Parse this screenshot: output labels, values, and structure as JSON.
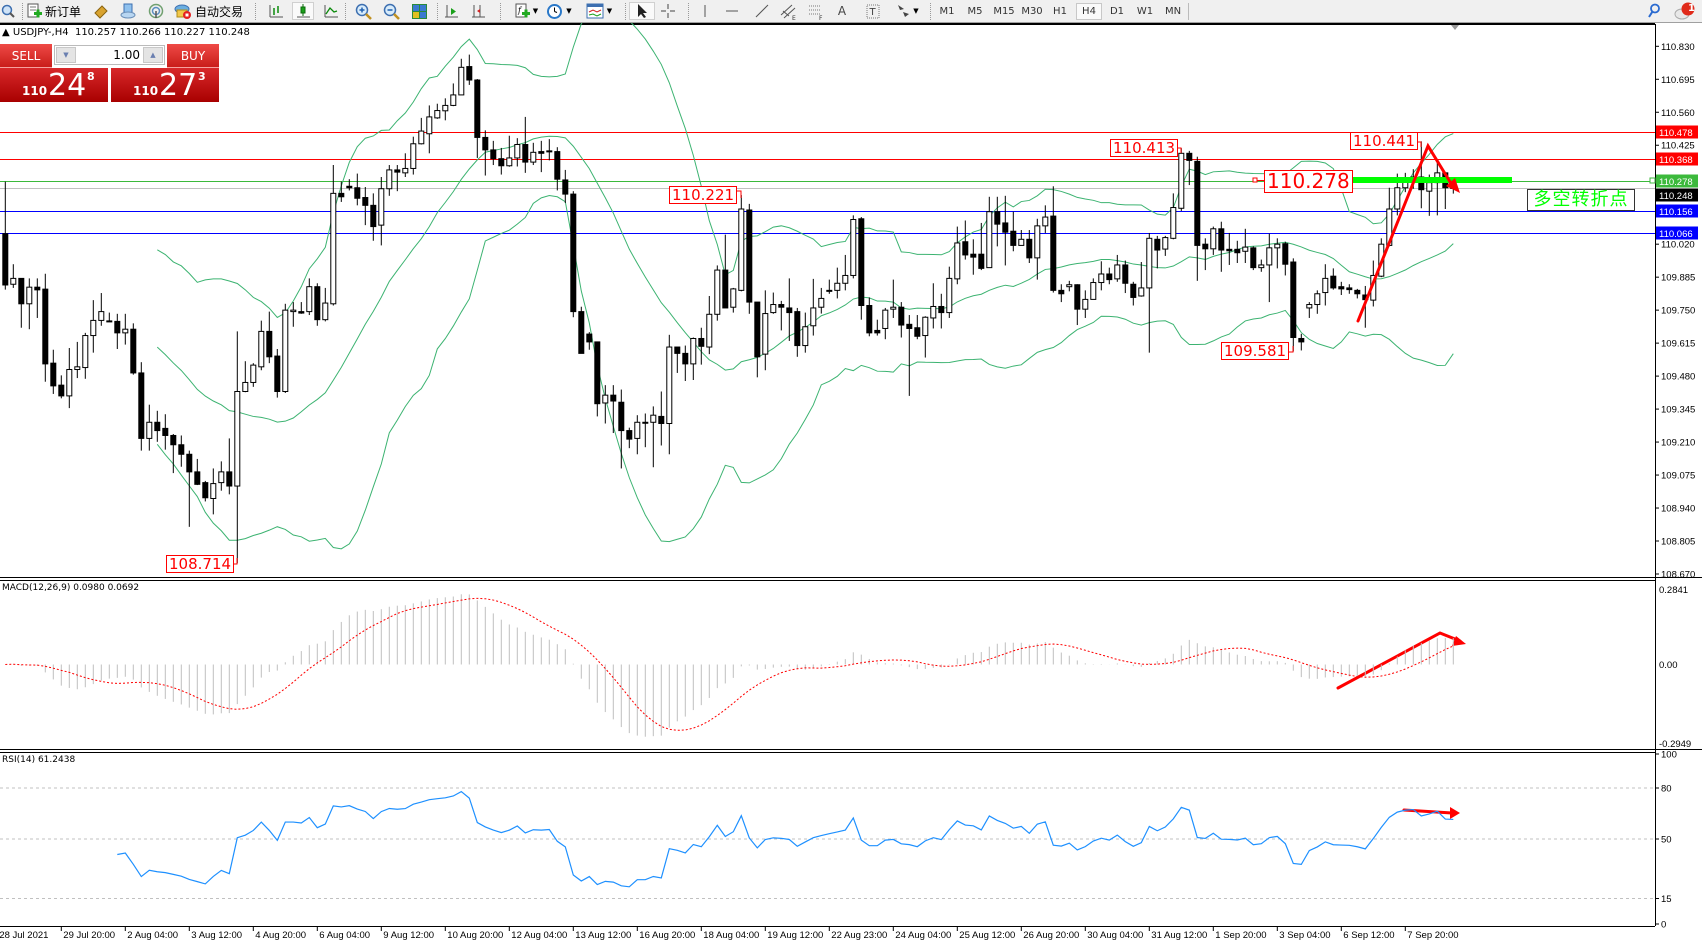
{
  "toolbar": {
    "new_order_label": "新订单",
    "auto_trading_label": "自动交易",
    "timeframes": [
      "M1",
      "M5",
      "M15",
      "M30",
      "H1",
      "H4",
      "D1",
      "W1",
      "MN"
    ],
    "active_timeframe": "H4",
    "notification_count": "1",
    "colors": {
      "background": "#f0f0f0"
    }
  },
  "chart": {
    "symbol": "USDJPY-,H4",
    "ohlc_readout": "110.257 110.266 110.227 110.248",
    "one_click": {
      "sell_label": "SELL",
      "buy_label": "BUY",
      "lot": "1.00",
      "sell_price": {
        "big": "110",
        "main": "24",
        "pip": "8"
      },
      "buy_price": {
        "big": "110",
        "main": "27",
        "pip": "3"
      }
    },
    "price_axis": [
      "110.830",
      "110.695",
      "110.560",
      "110.425",
      "110.020",
      "109.885",
      "109.750",
      "109.615",
      "109.480",
      "109.345",
      "109.210",
      "109.075",
      "108.940",
      "108.805",
      "108.670"
    ],
    "levels": [
      {
        "price": "110.478",
        "color": "#ff0000"
      },
      {
        "price": "110.368",
        "color": "#ff0000"
      },
      {
        "price": "110.278",
        "color": "#3cb93c"
      },
      {
        "price": "110.248",
        "color": "#000000"
      },
      {
        "price": "110.156",
        "color": "#0000ff"
      },
      {
        "price": "110.066",
        "color": "#0000ff"
      }
    ],
    "price_labels": {
      "low_1": "108.714",
      "high_1": "110.221",
      "high_2": "110.413",
      "pivot": "110.278",
      "high_3": "110.441",
      "low_2": "109.581"
    },
    "annotation_text": "多空转折点",
    "colors": {
      "bands": "#3cb371",
      "arrow": "#ff0000",
      "pivot_bar": "#00ff00"
    }
  },
  "macd": {
    "title": "MACD(12,26,9) 0.0980 0.0692",
    "axis": [
      "0.2841",
      "0.00",
      "-0.2949"
    ],
    "colors": {
      "histogram": "#c0c0c0",
      "signal": "#ff0000"
    }
  },
  "rsi": {
    "title": "RSI(14) 61.2438",
    "axis": [
      "100",
      "80",
      "50",
      "15",
      "0"
    ],
    "levels": [
      80,
      50,
      15
    ],
    "colors": {
      "line": "#1e90ff"
    }
  },
  "time_axis": [
    "28 Jul 2021",
    "29 Jul 20:00",
    "2 Aug 04:00",
    "3 Aug 12:00",
    "4 Aug 20:00",
    "6 Aug 04:00",
    "9 Aug 12:00",
    "10 Aug 20:00",
    "12 Aug 04:00",
    "13 Aug 12:00",
    "16 Aug 20:00",
    "18 Aug 04:00",
    "19 Aug 12:00",
    "22 Aug 23:00",
    "24 Aug 04:00",
    "25 Aug 12:00",
    "26 Aug 20:00",
    "30 Aug 04:00",
    "31 Aug 12:00",
    "1 Sep 20:00",
    "3 Sep 04:00",
    "6 Sep 12:00",
    "7 Sep 20:00"
  ],
  "chart_data": {
    "type": "candlestick",
    "timeframe": "H4",
    "ylim": [
      108.67,
      110.83
    ],
    "indicators": [
      "Bollinger Bands",
      "MACD(12,26,9)",
      "RSI(14)"
    ],
    "ohlc": [
      [
        110.063,
        110.276,
        109.834,
        109.853
      ],
      [
        109.856,
        109.938,
        109.841,
        109.88
      ],
      [
        109.88,
        109.88,
        109.678,
        109.776
      ],
      [
        109.776,
        109.88,
        109.672,
        109.844
      ],
      [
        109.844,
        109.88,
        109.718,
        109.833
      ],
      [
        109.836,
        109.899,
        109.457,
        109.53
      ],
      [
        109.533,
        109.588,
        109.407,
        109.44
      ],
      [
        109.443,
        109.483,
        109.389,
        109.399
      ],
      [
        109.399,
        109.595,
        109.349,
        109.507
      ],
      [
        109.507,
        109.62,
        109.472,
        109.518
      ],
      [
        109.515,
        109.657,
        109.469,
        109.646
      ],
      [
        109.646,
        109.791,
        109.576,
        109.708
      ],
      [
        109.708,
        109.82,
        109.686,
        109.744
      ],
      [
        109.706,
        109.74,
        109.701,
        109.702
      ],
      [
        109.704,
        109.735,
        109.591,
        109.657
      ],
      [
        109.657,
        109.735,
        109.609,
        109.672
      ],
      [
        109.672,
        109.696,
        109.486,
        109.493
      ],
      [
        109.493,
        109.537,
        109.175,
        109.225
      ],
      [
        109.225,
        109.363,
        109.175,
        109.291
      ],
      [
        109.291,
        109.338,
        109.211,
        109.257
      ],
      [
        109.266,
        109.324,
        109.179,
        109.237
      ],
      [
        109.237,
        109.243,
        109.083,
        109.199
      ],
      [
        109.199,
        109.237,
        109.109,
        109.16
      ],
      [
        109.16,
        109.175,
        108.863,
        109.088
      ],
      [
        109.088,
        109.141,
        109.034,
        109.037
      ],
      [
        109.044,
        109.051,
        108.967,
        108.982
      ],
      [
        108.979,
        109.102,
        108.914,
        109.04
      ],
      [
        109.044,
        109.131,
        109.011,
        109.088
      ],
      [
        109.088,
        109.225,
        108.996,
        109.03
      ],
      [
        109.03,
        109.663,
        108.714,
        109.417
      ],
      [
        109.417,
        109.541,
        109.414,
        109.454
      ],
      [
        109.454,
        109.533,
        109.436,
        109.525
      ],
      [
        109.518,
        109.707,
        109.504,
        109.663
      ],
      [
        109.663,
        109.744,
        109.533,
        109.559
      ],
      [
        109.562,
        109.591,
        109.392,
        109.417
      ],
      [
        109.417,
        109.776,
        109.411,
        109.75
      ],
      [
        109.744,
        109.783,
        109.682,
        109.75
      ],
      [
        109.744,
        109.783,
        109.735,
        109.738
      ],
      [
        109.744,
        109.88,
        109.73,
        109.846
      ],
      [
        109.846,
        109.86,
        109.686,
        109.711
      ],
      [
        109.711,
        109.841,
        109.704,
        109.779
      ],
      [
        109.776,
        110.344,
        109.769,
        110.228
      ],
      [
        110.228,
        110.276,
        110.193,
        110.214
      ],
      [
        110.257,
        110.286,
        110.24,
        110.251
      ],
      [
        110.251,
        110.309,
        110.179,
        110.208
      ],
      [
        110.211,
        110.254,
        110.098,
        110.179
      ],
      [
        110.179,
        110.228,
        110.034,
        110.092
      ],
      [
        110.098,
        110.295,
        110.015,
        110.247
      ],
      [
        110.247,
        110.344,
        110.218,
        110.324
      ],
      [
        110.324,
        110.344,
        110.237,
        110.315
      ],
      [
        110.312,
        110.392,
        110.295,
        110.33
      ],
      [
        110.33,
        110.46,
        110.305,
        110.431
      ],
      [
        110.431,
        110.537,
        110.428,
        110.483
      ],
      [
        110.472,
        110.588,
        110.392,
        110.541
      ],
      [
        110.537,
        110.595,
        110.533,
        110.567
      ],
      [
        110.566,
        110.617,
        110.527,
        110.588
      ],
      [
        110.588,
        110.678,
        110.585,
        110.631
      ],
      [
        110.631,
        110.779,
        110.631,
        110.744
      ],
      [
        110.747,
        110.796,
        110.672,
        110.692
      ],
      [
        110.692,
        110.696,
        110.373,
        110.457
      ],
      [
        110.457,
        110.486,
        110.301,
        110.406
      ],
      [
        110.406,
        110.443,
        110.344,
        110.37
      ],
      [
        110.37,
        110.414,
        110.305,
        110.341
      ],
      [
        110.341,
        110.464,
        110.337,
        110.373
      ],
      [
        110.373,
        110.454,
        110.338,
        110.428
      ],
      [
        110.428,
        110.541,
        110.312,
        110.356
      ],
      [
        110.356,
        110.435,
        110.344,
        110.396
      ],
      [
        110.399,
        110.443,
        110.315,
        110.392
      ],
      [
        110.402,
        110.45,
        110.363,
        110.399
      ],
      [
        110.399,
        110.417,
        110.24,
        110.286
      ],
      [
        110.283,
        110.324,
        110.189,
        110.225
      ],
      [
        110.225,
        110.237,
        109.721,
        109.744
      ],
      [
        109.744,
        109.764,
        109.573,
        109.573
      ],
      [
        109.652,
        109.66,
        109.588,
        109.62
      ],
      [
        109.62,
        109.62,
        109.315,
        109.367
      ],
      [
        109.37,
        109.443,
        109.286,
        109.402
      ],
      [
        109.402,
        109.443,
        109.247,
        109.378
      ],
      [
        109.373,
        109.425,
        109.102,
        109.257
      ],
      [
        109.257,
        109.269,
        109.185,
        109.222
      ],
      [
        109.225,
        109.32,
        109.16,
        109.291
      ],
      [
        109.291,
        109.327,
        109.189,
        109.291
      ],
      [
        109.291,
        109.356,
        109.107,
        109.32
      ],
      [
        109.315,
        109.417,
        109.196,
        109.286
      ],
      [
        109.286,
        109.649,
        109.16,
        109.599
      ],
      [
        109.599,
        109.599,
        109.493,
        109.573
      ],
      [
        109.573,
        109.605,
        109.46,
        109.53
      ],
      [
        109.53,
        109.638,
        109.464,
        109.634
      ],
      [
        109.634,
        109.678,
        109.527,
        109.602
      ],
      [
        109.599,
        109.808,
        109.57,
        109.733
      ],
      [
        109.733,
        109.933,
        109.707,
        109.914
      ],
      [
        109.914,
        110.059,
        109.759,
        109.759
      ],
      [
        109.762,
        109.841,
        109.74,
        109.837
      ],
      [
        109.831,
        110.221,
        109.827,
        110.164
      ],
      [
        110.16,
        110.185,
        109.735,
        109.783
      ],
      [
        109.783,
        109.783,
        109.475,
        109.559
      ],
      [
        109.57,
        109.831,
        109.504,
        109.736
      ],
      [
        109.74,
        109.822,
        109.735,
        109.773
      ],
      [
        109.773,
        109.788,
        109.667,
        109.762
      ],
      [
        109.759,
        109.88,
        109.624,
        109.74
      ],
      [
        109.744,
        109.759,
        109.559,
        109.605
      ],
      [
        109.605,
        109.74,
        109.576,
        109.682
      ],
      [
        109.686,
        109.878,
        109.646,
        109.759
      ],
      [
        109.762,
        109.841,
        109.736,
        109.798
      ],
      [
        109.831,
        109.875,
        109.817,
        109.831
      ],
      [
        109.831,
        109.924,
        109.798,
        109.86
      ],
      [
        109.86,
        109.976,
        109.831,
        109.892
      ],
      [
        109.892,
        110.138,
        109.88,
        110.121
      ],
      [
        110.124,
        110.131,
        109.711,
        109.769
      ],
      [
        109.769,
        109.802,
        109.643,
        109.657
      ],
      [
        109.667,
        109.711,
        109.646,
        109.657
      ],
      [
        109.675,
        109.759,
        109.631,
        109.75
      ],
      [
        109.754,
        109.875,
        109.718,
        109.762
      ],
      [
        109.762,
        109.783,
        109.638,
        109.689
      ],
      [
        109.692,
        109.73,
        109.399,
        109.675
      ],
      [
        109.678,
        109.73,
        109.631,
        109.643
      ],
      [
        109.646,
        109.725,
        109.556,
        109.721
      ],
      [
        109.718,
        109.86,
        109.675,
        109.765
      ],
      [
        109.765,
        109.817,
        109.675,
        109.74
      ],
      [
        109.74,
        109.928,
        109.718,
        109.88
      ],
      [
        109.878,
        110.092,
        109.856,
        110.025
      ],
      [
        110.03,
        110.117,
        109.957,
        109.976
      ],
      [
        109.979,
        110.04,
        109.895,
        109.967
      ],
      [
        109.979,
        110.107,
        109.914,
        109.921
      ],
      [
        109.924,
        110.214,
        109.924,
        110.153
      ],
      [
        110.153,
        110.214,
        110.011,
        110.102
      ],
      [
        110.107,
        110.218,
        109.933,
        110.069
      ],
      [
        110.073,
        110.153,
        109.991,
        110.015
      ],
      [
        110.015,
        110.078,
        110.015,
        110.04
      ],
      [
        110.04,
        110.078,
        109.943,
        109.964
      ],
      [
        109.964,
        110.124,
        109.875,
        110.095
      ],
      [
        110.095,
        110.179,
        110.066,
        110.131
      ],
      [
        110.135,
        110.257,
        109.822,
        109.831
      ],
      [
        109.831,
        109.856,
        109.783,
        109.817
      ],
      [
        109.846,
        109.87,
        109.827,
        109.854
      ],
      [
        109.854,
        109.856,
        109.689,
        109.754
      ],
      [
        109.754,
        109.831,
        109.718,
        109.794
      ],
      [
        109.794,
        109.88,
        109.794,
        109.863
      ],
      [
        109.863,
        109.95,
        109.831,
        109.898
      ],
      [
        109.898,
        109.924,
        109.856,
        109.875
      ],
      [
        109.878,
        109.976,
        109.866,
        109.935
      ],
      [
        109.935,
        109.953,
        109.82,
        109.86
      ],
      [
        109.856,
        109.866,
        109.769,
        109.802
      ],
      [
        109.808,
        109.947,
        109.805,
        109.841
      ],
      [
        109.841,
        110.066,
        109.576,
        110.044
      ],
      [
        110.04,
        110.054,
        109.921,
        109.996
      ],
      [
        110.0,
        110.054,
        109.972,
        110.047
      ],
      [
        110.044,
        110.228,
        110.04,
        110.17
      ],
      [
        110.167,
        110.413,
        110.156,
        110.392
      ],
      [
        110.392,
        110.402,
        110.262,
        110.363
      ],
      [
        110.359,
        110.378,
        109.87,
        110.015
      ],
      [
        110.02,
        110.044,
        109.914,
        110.001
      ],
      [
        110.001,
        110.092,
        109.976,
        110.083
      ],
      [
        110.083,
        110.112,
        109.907,
        109.996
      ],
      [
        109.999,
        110.066,
        109.935,
        109.993
      ],
      [
        109.999,
        110.034,
        109.943,
        109.985
      ],
      [
        109.991,
        110.083,
        109.943,
        110.008
      ],
      [
        110.005,
        110.011,
        109.914,
        109.924
      ],
      [
        109.924,
        109.957,
        109.907,
        109.935
      ],
      [
        109.935,
        110.063,
        109.783,
        110.005
      ],
      [
        110.005,
        110.044,
        109.921,
        110.02
      ],
      [
        110.022,
        110.03,
        109.892,
        109.938
      ],
      [
        109.947,
        109.962,
        109.581,
        109.638
      ],
      [
        109.634,
        109.653,
        109.585,
        109.62
      ],
      [
        109.759,
        109.783,
        109.718,
        109.773
      ],
      [
        109.773,
        109.831,
        109.735,
        109.817
      ],
      [
        109.822,
        109.938,
        109.769,
        109.88
      ],
      [
        109.889,
        109.921,
        109.834,
        109.841
      ],
      [
        109.846,
        109.866,
        109.812,
        109.837
      ],
      [
        109.841,
        109.856,
        109.817,
        109.834
      ],
      [
        109.831,
        109.837,
        109.798,
        109.817
      ],
      [
        109.812,
        109.849,
        109.678,
        109.793
      ],
      [
        109.791,
        109.953,
        109.765,
        109.892
      ],
      [
        109.889,
        110.044,
        109.885,
        110.02
      ],
      [
        110.015,
        110.251,
        110.011,
        110.164
      ],
      [
        110.164,
        110.309,
        110.138,
        110.251
      ],
      [
        110.251,
        110.312,
        110.233,
        110.286
      ],
      [
        110.283,
        110.327,
        110.247,
        110.295
      ],
      [
        110.295,
        110.441,
        110.167,
        110.243
      ],
      [
        110.237,
        110.305,
        110.136,
        110.272
      ],
      [
        110.272,
        110.363,
        110.138,
        110.312
      ],
      [
        110.312,
        110.315,
        110.164,
        110.251
      ],
      [
        110.257,
        110.266,
        110.227,
        110.248
      ]
    ]
  }
}
